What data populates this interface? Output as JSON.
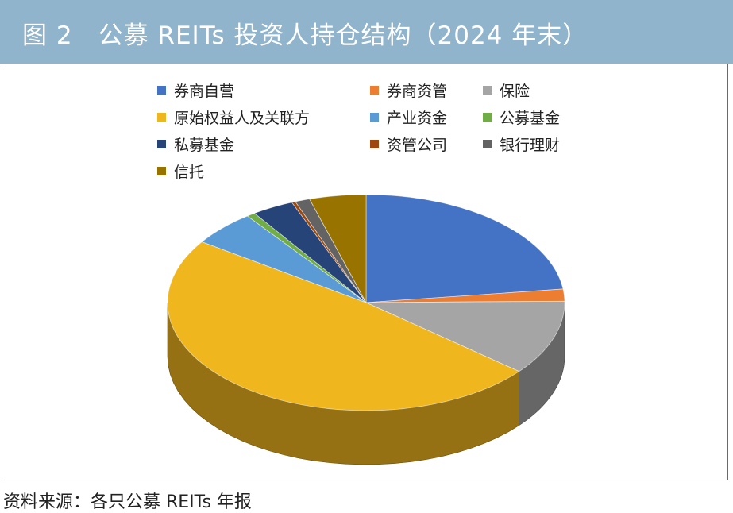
{
  "header": {
    "title": "图 2　公募 REITs 投资人持仓结构（2024 年末）"
  },
  "source": "资料来源：各只公募 REITs 年报",
  "chart_data": {
    "type": "pie",
    "three_d": true,
    "legend_position": "top",
    "start_angle_deg": 90,
    "direction": "clockwise",
    "categories": [
      "券商自营",
      "券商资管",
      "保险",
      "原始权益人及关联方",
      "产业资金",
      "公募基金",
      "私募基金",
      "资管公司",
      "银行理财",
      "信托"
    ],
    "values": [
      23.0,
      1.8,
      11.2,
      48.5,
      5.3,
      0.7,
      3.4,
      0.3,
      1.2,
      4.6
    ],
    "colors": [
      "#4472c4",
      "#ed7d31",
      "#a5a5a5",
      "#f0b61e",
      "#5b9bd5",
      "#70ad47",
      "#264478",
      "#9e480e",
      "#636363",
      "#997300"
    ]
  }
}
